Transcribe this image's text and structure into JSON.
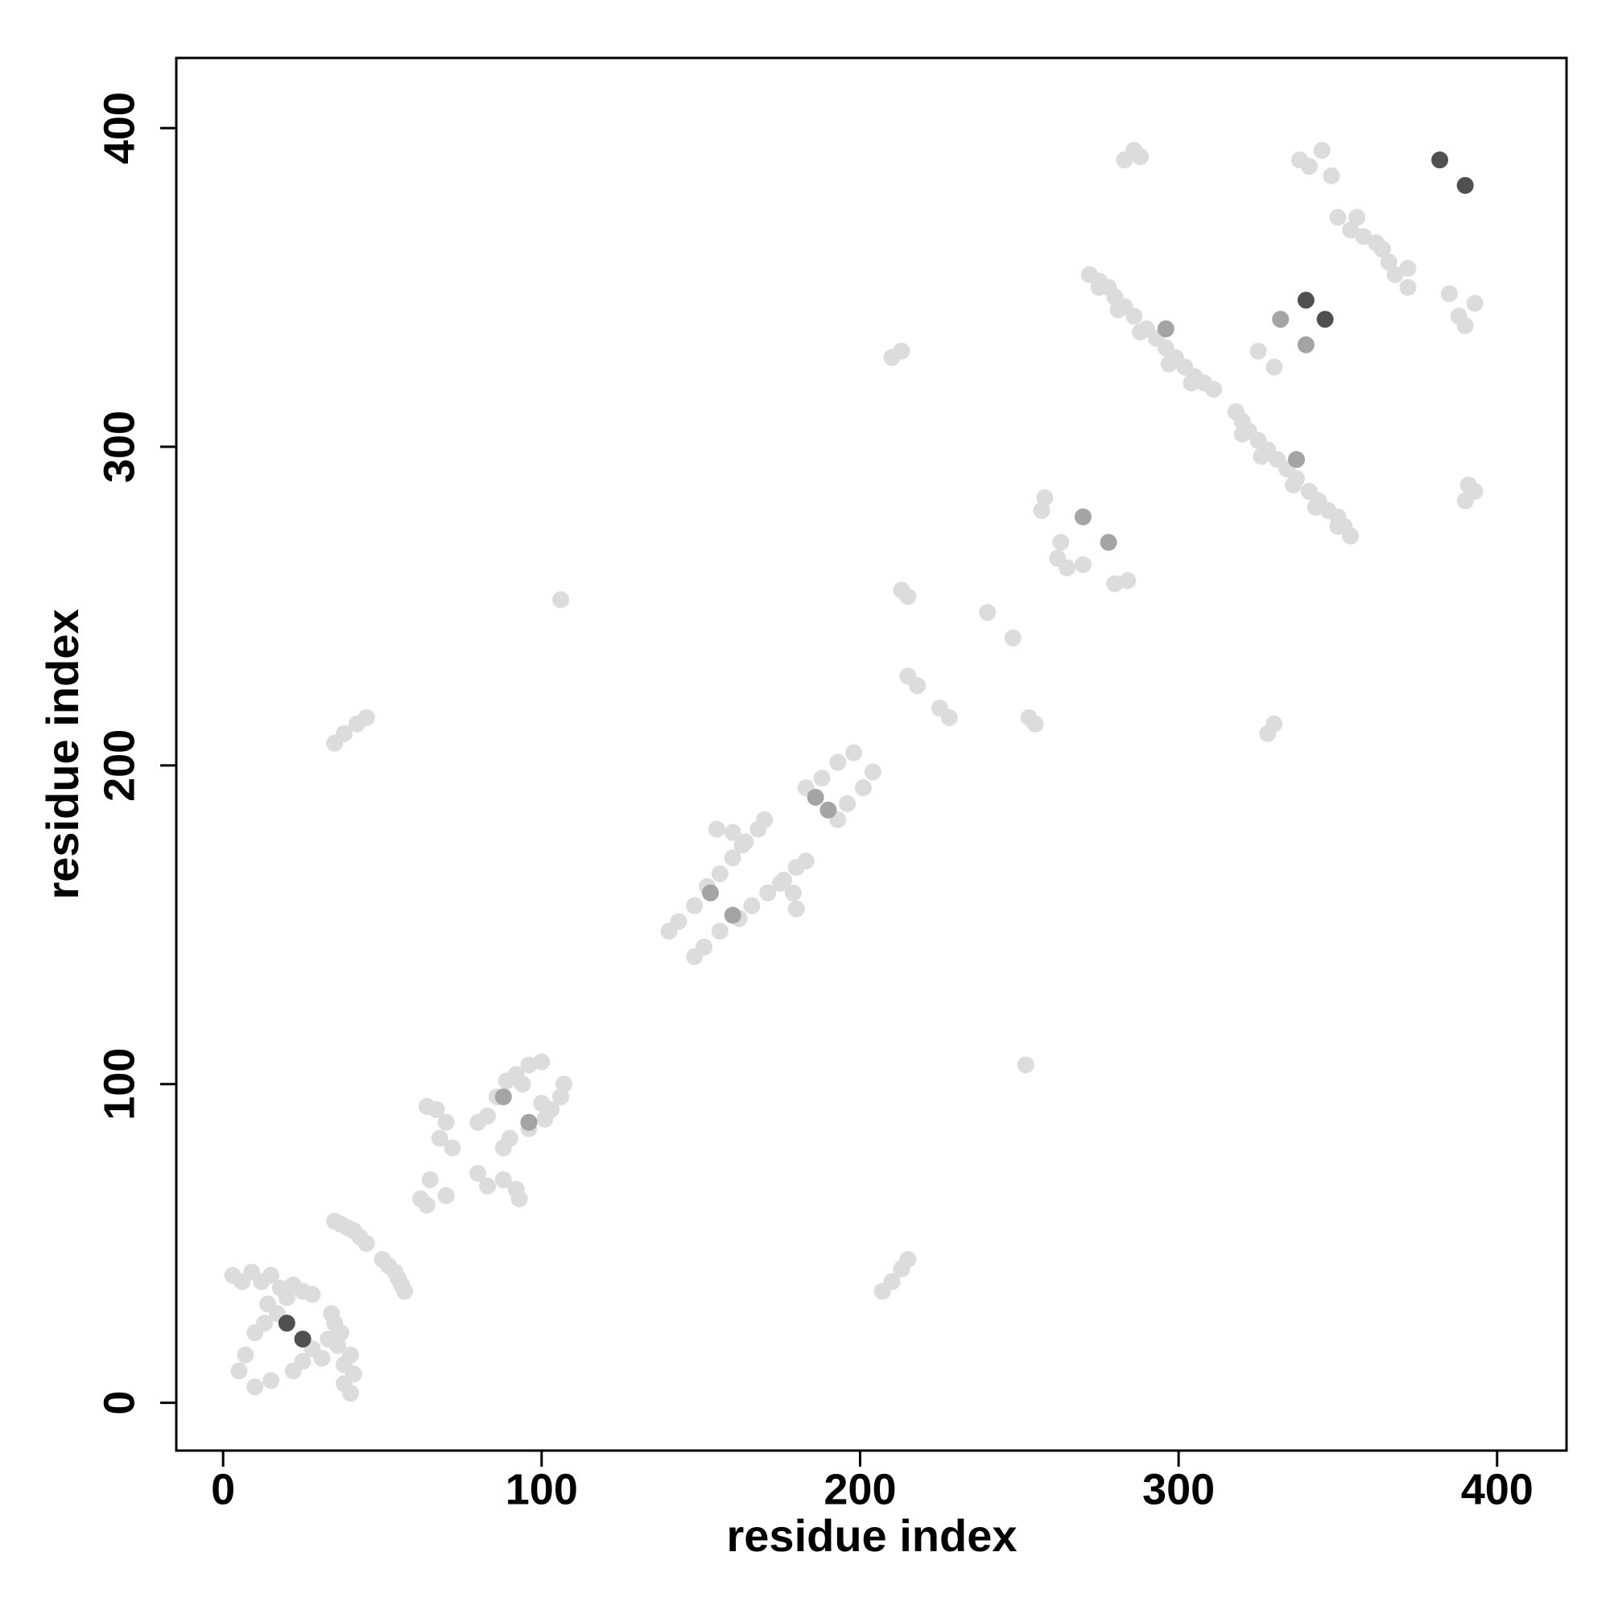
{
  "chart_data": {
    "type": "scatter",
    "xlabel": "residue index",
    "ylabel": "residue index",
    "xlim": [
      -14.7,
      421.8
    ],
    "ylim": [
      -15,
      422
    ],
    "xticks": [
      0,
      100,
      200,
      300,
      400
    ],
    "yticks": [
      0,
      100,
      200,
      300,
      400
    ],
    "series": [
      {
        "color": "#dcdcdc",
        "x": [
          3,
          6,
          9,
          12,
          15,
          18,
          14,
          17,
          20,
          22,
          25,
          10,
          7,
          5,
          13,
          28,
          35,
          37,
          39,
          41,
          43,
          45,
          62,
          64,
          67,
          70,
          68,
          72,
          65,
          80,
          83,
          86,
          89,
          92,
          96,
          100,
          94,
          207,
          210,
          213,
          215,
          106,
          140,
          143,
          148,
          152,
          156,
          160,
          164,
          168,
          155,
          160,
          163,
          170,
          183,
          188,
          193,
          198,
          210,
          213,
          213,
          215,
          215,
          218,
          240,
          257,
          258,
          263,
          265,
          272,
          275,
          278,
          280,
          283,
          286,
          290,
          293,
          296,
          299,
          302,
          305,
          308,
          311,
          275,
          281,
          288,
          297,
          304,
          283,
          286,
          288,
          338,
          341,
          345,
          348,
          350,
          354,
          358,
          362,
          356,
          325,
          40,
          38,
          41,
          38,
          40,
          36,
          31,
          28,
          33,
          37,
          35,
          22,
          15,
          10,
          25,
          34,
          57,
          56,
          55,
          54,
          52,
          50,
          64,
          93,
          92,
          88,
          83,
          80,
          70,
          88,
          90,
          96,
          101,
          103,
          106,
          107,
          100,
          35,
          38,
          42,
          45,
          252,
          148,
          151,
          156,
          162,
          166,
          171,
          176,
          180,
          180,
          179,
          175,
          183,
          193,
          196,
          201,
          204,
          328,
          330,
          255,
          253,
          228,
          225,
          248,
          280,
          284,
          270,
          262,
          354,
          352,
          350,
          347,
          344,
          341,
          337,
          334,
          331,
          328,
          325,
          322,
          320,
          318,
          350,
          343,
          336,
          326,
          320,
          390,
          393,
          391,
          390,
          388,
          393,
          385,
          372,
          368,
          366,
          364,
          372,
          330
        ],
        "y": [
          40,
          38,
          41,
          38,
          40,
          36,
          31,
          28,
          33,
          37,
          35,
          22,
          15,
          10,
          25,
          34,
          57,
          56,
          55,
          54,
          52,
          50,
          64,
          93,
          92,
          88,
          83,
          80,
          70,
          88,
          90,
          96,
          101,
          103,
          106,
          107,
          100,
          35,
          38,
          42,
          45,
          252,
          148,
          151,
          156,
          162,
          166,
          171,
          176,
          180,
          180,
          179,
          175,
          183,
          193,
          196,
          201,
          204,
          328,
          330,
          255,
          253,
          228,
          225,
          248,
          280,
          284,
          270,
          262,
          354,
          352,
          350,
          347,
          344,
          341,
          337,
          334,
          331,
          328,
          325,
          322,
          320,
          318,
          350,
          343,
          336,
          326,
          320,
          390,
          393,
          391,
          390,
          388,
          393,
          385,
          372,
          368,
          366,
          364,
          372,
          330,
          3,
          6,
          9,
          12,
          15,
          18,
          14,
          17,
          20,
          22,
          25,
          10,
          7,
          5,
          13,
          28,
          35,
          37,
          39,
          41,
          43,
          45,
          62,
          64,
          67,
          70,
          68,
          72,
          65,
          80,
          83,
          86,
          89,
          92,
          96,
          100,
          94,
          207,
          210,
          213,
          215,
          106,
          140,
          143,
          148,
          152,
          156,
          160,
          164,
          168,
          155,
          160,
          163,
          170,
          183,
          188,
          193,
          198,
          210,
          213,
          213,
          215,
          215,
          218,
          240,
          257,
          258,
          263,
          265,
          272,
          275,
          278,
          280,
          283,
          286,
          290,
          293,
          296,
          299,
          302,
          305,
          308,
          311,
          275,
          281,
          288,
          297,
          304,
          283,
          286,
          288,
          338,
          341,
          345,
          348,
          350,
          354,
          358,
          362,
          356,
          325
        ]
      },
      {
        "color": "#a4a4a4",
        "x": [
          270,
          296,
          332,
          88,
          153,
          186,
          278,
          337,
          340,
          96,
          160,
          190
        ],
        "y": [
          278,
          337,
          340,
          96,
          160,
          190,
          270,
          296,
          332,
          88,
          153,
          186
        ]
      },
      {
        "color": "#505050",
        "x": [
          20,
          340,
          382,
          25,
          346,
          390
        ],
        "y": [
          25,
          346,
          390,
          20,
          340,
          382
        ]
      }
    ]
  }
}
